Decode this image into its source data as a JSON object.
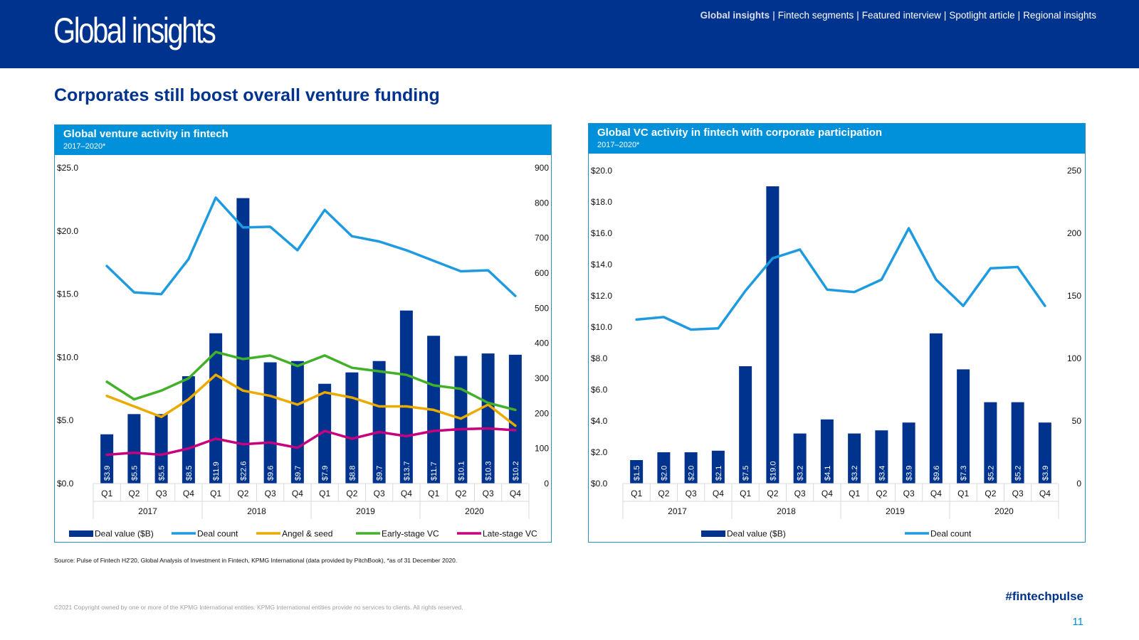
{
  "header": {
    "title": "Global insights",
    "nav": [
      {
        "label": "Global insights",
        "active": true
      },
      {
        "label": "Fintech segments",
        "active": false
      },
      {
        "label": "Featured interview",
        "active": false
      },
      {
        "label": "Spotlight article",
        "active": false
      },
      {
        "label": "Regional insights",
        "active": false
      }
    ],
    "nav_separator": "|"
  },
  "page_heading": "Corporates still boost overall venture funding",
  "colors": {
    "header_bg": "#00338D",
    "panel_head": "#0091DA",
    "bar": "#00338D",
    "deal_count": "#1E9BE0",
    "angel_seed": "#EAAA00",
    "early_vc": "#43B02A",
    "late_vc": "#C6007E"
  },
  "chart_data": [
    {
      "type": "bar",
      "title": "Global venture activity in fintech",
      "subtitle": "2017–2020*",
      "quarters": [
        "Q1",
        "Q2",
        "Q3",
        "Q4",
        "Q1",
        "Q2",
        "Q3",
        "Q4",
        "Q1",
        "Q2",
        "Q3",
        "Q4",
        "Q1",
        "Q2",
        "Q3",
        "Q4"
      ],
      "years": [
        "2017",
        "2018",
        "2019",
        "2020"
      ],
      "bar_series": {
        "name": "Deal value ($B)",
        "values": [
          3.9,
          5.5,
          5.5,
          8.5,
          11.9,
          22.6,
          9.6,
          9.7,
          7.9,
          8.8,
          9.7,
          13.7,
          11.7,
          10.1,
          10.3,
          10.2
        ],
        "labels": [
          "$3.9",
          "$5.5",
          "$5.5",
          "$8.5",
          "$11.9",
          "$22.6",
          "$9.6",
          "$9.7",
          "$7.9",
          "$8.8",
          "$9.7",
          "$13.7",
          "$11.7",
          "$10.1",
          "$10.3",
          "$10.2"
        ]
      },
      "line_series": [
        {
          "name": "Deal count",
          "values": [
            620,
            545,
            540,
            640,
            815,
            730,
            732,
            665,
            780,
            705,
            690,
            665,
            635,
            605,
            608,
            535
          ]
        },
        {
          "name": "Angel & seed",
          "values": [
            250,
            220,
            190,
            240,
            310,
            265,
            250,
            225,
            260,
            245,
            220,
            220,
            210,
            185,
            225,
            165
          ]
        },
        {
          "name": "Early-stage VC",
          "values": [
            290,
            240,
            265,
            300,
            375,
            355,
            365,
            335,
            365,
            330,
            320,
            310,
            280,
            270,
            230,
            210
          ]
        },
        {
          "name": "Late-stage VC",
          "values": [
            82,
            88,
            82,
            100,
            128,
            112,
            117,
            102,
            150,
            128,
            147,
            135,
            150,
            155,
            157,
            152
          ]
        }
      ],
      "y_left": {
        "min": 0,
        "max": 25,
        "ticks": [
          "$0.0",
          "$5.0",
          "$10.0",
          "$15.0",
          "$20.0",
          "$25.0"
        ]
      },
      "y_right": {
        "min": 0,
        "max": 900,
        "ticks": [
          "0",
          "100",
          "200",
          "300",
          "400",
          "500",
          "600",
          "700",
          "800",
          "900"
        ]
      },
      "legend": [
        "Deal value ($B)",
        "Deal count",
        "Angel & seed",
        "Early-stage VC",
        "Late-stage VC"
      ]
    },
    {
      "type": "bar",
      "title": "Global VC activity in fintech with corporate participation",
      "subtitle": "2017–2020*",
      "quarters": [
        "Q1",
        "Q2",
        "Q3",
        "Q4",
        "Q1",
        "Q2",
        "Q3",
        "Q4",
        "Q1",
        "Q2",
        "Q3",
        "Q4",
        "Q1",
        "Q2",
        "Q3",
        "Q4"
      ],
      "years": [
        "2017",
        "2018",
        "2019",
        "2020"
      ],
      "bar_series": {
        "name": "Deal value ($B)",
        "values": [
          1.5,
          2.0,
          2.0,
          2.1,
          7.5,
          19.0,
          3.2,
          4.1,
          3.2,
          3.4,
          3.9,
          9.6,
          7.3,
          5.2,
          5.2,
          3.9
        ],
        "labels": [
          "$1.5",
          "$2.0",
          "$2.0",
          "$2.1",
          "$7.5",
          "$19.0",
          "$3.2",
          "$4.1",
          "$3.2",
          "$3.4",
          "$3.9",
          "$9.6",
          "$7.3",
          "$5.2",
          "$5.2",
          "$3.9"
        ]
      },
      "line_series": [
        {
          "name": "Deal count",
          "values": [
            131,
            133,
            123,
            124,
            154,
            180,
            187,
            155,
            153,
            163,
            204,
            163,
            142,
            172,
            173,
            142
          ]
        }
      ],
      "y_left": {
        "min": 0,
        "max": 20,
        "ticks": [
          "$0.0",
          "$2.0",
          "$4.0",
          "$6.0",
          "$8.0",
          "$10.0",
          "$12.0",
          "$14.0",
          "$16.0",
          "$18.0",
          "$20.0"
        ]
      },
      "y_right": {
        "min": 0,
        "max": 250,
        "ticks": [
          "0",
          "50",
          "100",
          "150",
          "200",
          "250"
        ]
      },
      "legend": [
        "Deal value ($B)",
        "Deal count"
      ]
    }
  ],
  "source": "Source: Pulse of Fintech H2'20, Global Analysis of Investment in Fintech, KPMG International (data provided by PitchBook), *as of 31 December 2020.",
  "copyright": "©2021 Copyright owned by one or more of the KPMG International entities. KPMG International entities provide no services to clients. All rights reserved.",
  "hashtag": "#fintechpulse",
  "page_number": "11"
}
